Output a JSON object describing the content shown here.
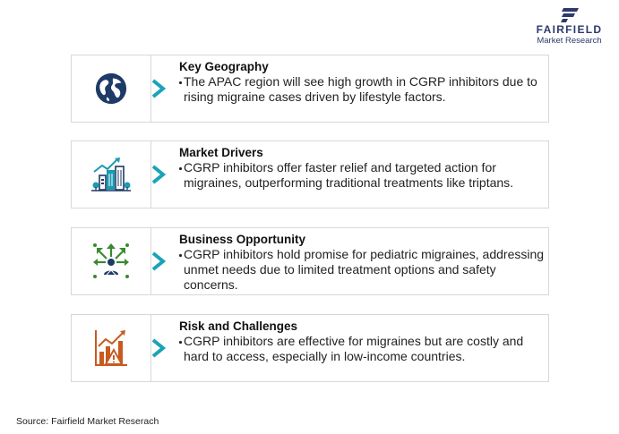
{
  "logo": {
    "name": "FAIRFIELD",
    "sub": "Market Research"
  },
  "cards": [
    {
      "title": "Key Geography",
      "body": "The APAC region will see high growth in CGRP inhibitors due to rising migraine cases driven by lifestyle factors.",
      "icon": "globe-icon"
    },
    {
      "title": "Market Drivers",
      "body": "CGRP inhibitors offer faster relief and targeted action for migraines, outperforming traditional treatments like triptans.",
      "icon": "city-growth-icon"
    },
    {
      "title": "Business Opportunity",
      "body": "CGRP inhibitors hold promise for pediatric migraines, addressing unmet needs due to limited treatment options and safety concerns.",
      "icon": "expansion-arrows-icon"
    },
    {
      "title": "Risk and Challenges",
      "body": "CGRP inhibitors are effective for migraines but are costly and hard to access, especially in low-income countries.",
      "icon": "risk-chart-icon"
    }
  ],
  "source": "Source: Fairfield Market Reserach",
  "colors": {
    "navy": "#1e3a66",
    "teal": "#1a9bb0",
    "green": "#3a8a2e",
    "orange": "#c85a1e",
    "chevron": "#1aa3b8"
  }
}
